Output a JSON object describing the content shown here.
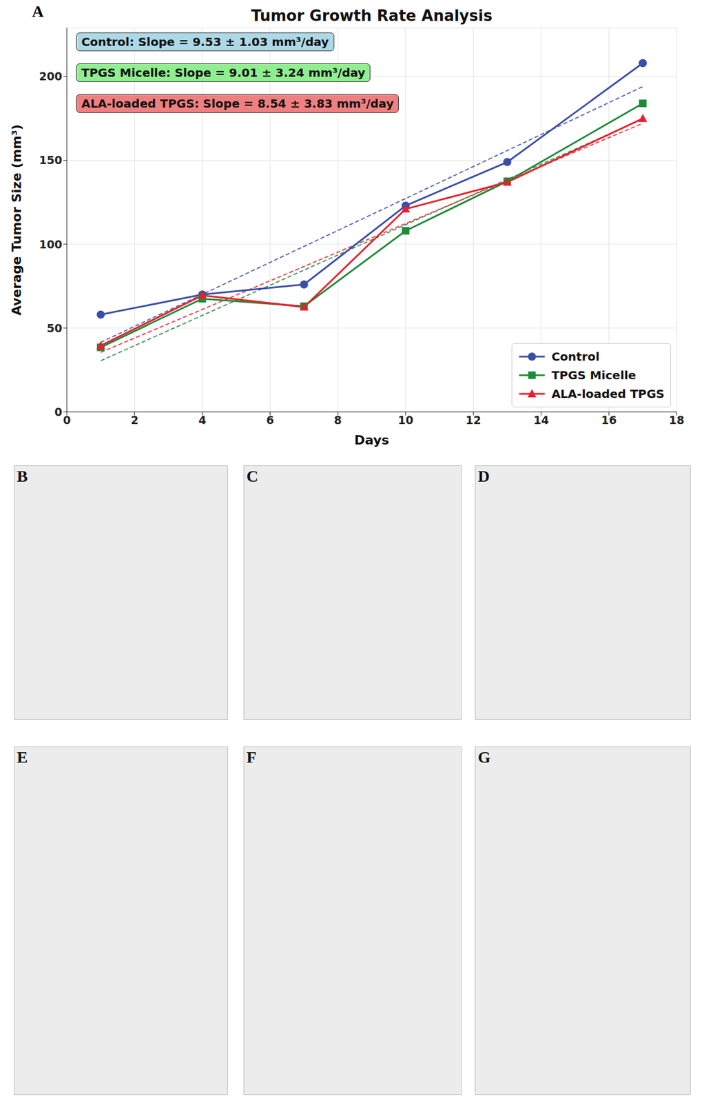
{
  "chart_data": {
    "type": "line",
    "title": "Tumor Growth Rate Analysis",
    "x_label": "Days",
    "y_label": "Average Tumor Size (mm³)",
    "x": [
      1,
      4,
      7,
      10,
      13,
      17
    ],
    "trend_x": [
      1,
      17
    ],
    "series": [
      {
        "name": "Control",
        "color": "#3b4ea6",
        "marker": "circle",
        "line_style": "solid",
        "values": [
          58,
          70,
          76,
          123,
          149,
          208
        ],
        "trend": [
          41.5,
          194
        ]
      },
      {
        "name": "TPGS Micelle",
        "color": "#1f8a3b",
        "marker": "square",
        "line_style": "solid",
        "values": [
          38.5,
          67.5,
          63,
          108,
          137.5,
          184
        ],
        "trend": [
          30.5,
          174.7
        ]
      },
      {
        "name": "ALA-loaded TPGS",
        "color": "#e8202a",
        "marker": "triangle",
        "line_style": "solid",
        "values": [
          39.5,
          69.5,
          62.5,
          121,
          137,
          175
        ],
        "trend": [
          35.5,
          172.1
        ]
      }
    ],
    "annotations": [
      {
        "text": "Control: Slope = 9.53 ± 1.03 mm³/day",
        "color": "#add8e6"
      },
      {
        "text": "TPGS Micelle: Slope = 9.01 ± 3.24 mm³/day",
        "color": "#90ee90"
      },
      {
        "text": "ALA-loaded TPGS: Slope = 8.54 ± 3.83 mm³/day",
        "color": "#f08080"
      }
    ],
    "xlim": [
      0,
      18
    ],
    "xticks": [
      0,
      2,
      4,
      6,
      8,
      10,
      12,
      14,
      16,
      18
    ],
    "ylim": [
      0,
      229
    ],
    "yticks": [
      0,
      50,
      100,
      150,
      200
    ],
    "grid": true,
    "legend": "lower right"
  },
  "chart_letter": "A",
  "photo_panels": [
    "B",
    "C",
    "D",
    "E",
    "F",
    "G"
  ]
}
